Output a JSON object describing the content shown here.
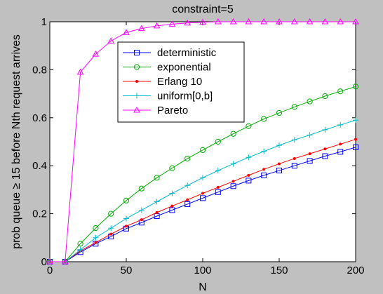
{
  "chart_data": {
    "type": "line",
    "title": "constraint=5",
    "xlabel": "N",
    "ylabel": "prob queue ≥ 15 before Nth request arrives",
    "xlim": [
      0,
      200
    ],
    "ylim": [
      0,
      1
    ],
    "xticks": [
      0,
      50,
      100,
      150,
      200
    ],
    "yticks": [
      0,
      0.2,
      0.4,
      0.6,
      0.8,
      1
    ],
    "xtick_labels": [
      "0",
      "50",
      "100",
      "150",
      "200"
    ],
    "ytick_labels": [
      "0",
      "0.2",
      "0.4",
      "0.6",
      "0.8",
      "1"
    ],
    "grid": false,
    "legend_position": "top-center",
    "x": [
      0,
      10,
      20,
      30,
      40,
      50,
      60,
      70,
      80,
      90,
      100,
      110,
      120,
      130,
      140,
      150,
      160,
      170,
      180,
      190,
      200
    ],
    "series": [
      {
        "name": "deterministic",
        "color": "#0000ff",
        "marker": "square",
        "values": [
          0,
          0,
          0.04,
          0.075,
          0.105,
          0.138,
          0.163,
          0.19,
          0.215,
          0.24,
          0.265,
          0.29,
          0.315,
          0.338,
          0.36,
          0.38,
          0.4,
          0.42,
          0.44,
          0.458,
          0.477
        ]
      },
      {
        "name": "exponential",
        "color": "#00aa00",
        "marker": "circle",
        "values": [
          0,
          0,
          0.075,
          0.14,
          0.2,
          0.255,
          0.305,
          0.35,
          0.39,
          0.43,
          0.465,
          0.5,
          0.533,
          0.565,
          0.595,
          0.62,
          0.645,
          0.668,
          0.69,
          0.71,
          0.73
        ]
      },
      {
        "name": "Erlang 10",
        "color": "#ff0000",
        "marker": "dot",
        "values": [
          0,
          0,
          0.045,
          0.08,
          0.115,
          0.148,
          0.175,
          0.205,
          0.232,
          0.258,
          0.285,
          0.31,
          0.335,
          0.36,
          0.385,
          0.408,
          0.43,
          0.45,
          0.47,
          0.49,
          0.51
        ]
      },
      {
        "name": "uniform[0,b]",
        "color": "#00bbcc",
        "marker": "plus",
        "values": [
          0,
          0,
          0.05,
          0.1,
          0.14,
          0.18,
          0.215,
          0.25,
          0.285,
          0.318,
          0.35,
          0.38,
          0.408,
          0.435,
          0.46,
          0.485,
          0.508,
          0.528,
          0.55,
          0.57,
          0.59
        ]
      },
      {
        "name": "Pareto",
        "color": "#ff00ff",
        "marker": "triangle",
        "values": [
          0,
          0,
          0.79,
          0.865,
          0.92,
          0.955,
          0.972,
          0.983,
          0.99,
          0.995,
          0.998,
          1,
          1,
          1,
          1,
          1,
          1,
          1,
          1,
          1,
          1
        ]
      }
    ]
  }
}
